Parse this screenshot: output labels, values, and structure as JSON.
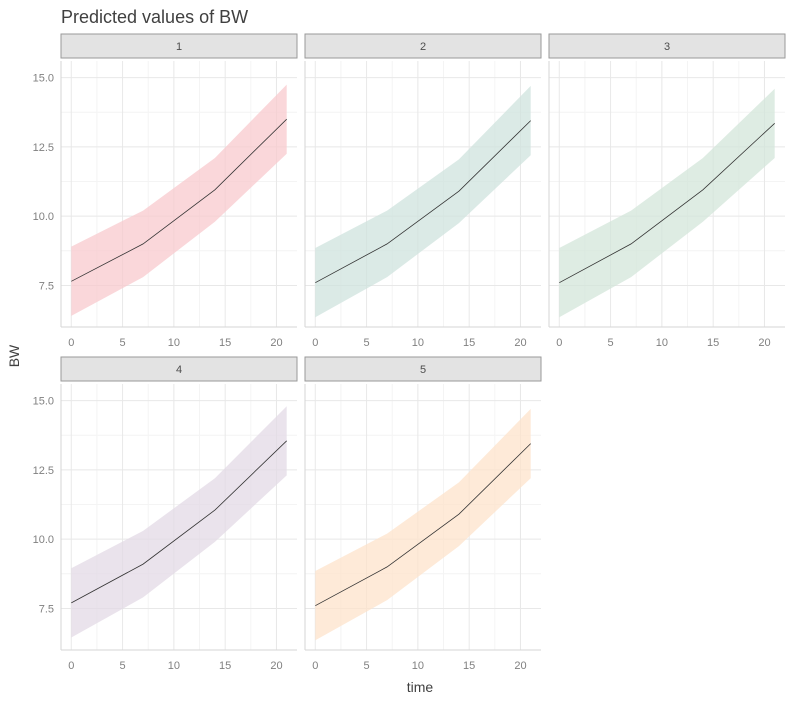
{
  "chart_data": {
    "type": "line",
    "title": "Predicted values of BW",
    "xlabel": "time",
    "ylabel": "BW",
    "xlim": [
      -1,
      22
    ],
    "ylim": [
      6.0,
      15.6
    ],
    "x_ticks": [
      0,
      5,
      10,
      15,
      20
    ],
    "x_tick_labels": [
      "0",
      "5",
      "10",
      "15",
      "20"
    ],
    "y_ticks": [
      7.5,
      10.0,
      12.5,
      15.0
    ],
    "y_tick_labels": [
      "7.5",
      "10.0",
      "12.5",
      "15.0"
    ],
    "grid": true,
    "facet_layout": "3 columns, 2 rows",
    "panels": [
      {
        "label": "1",
        "color": "#F8C9CD",
        "x": [
          0,
          7,
          14,
          21
        ],
        "y": [
          7.65,
          9.0,
          10.95,
          13.5
        ],
        "lower": [
          6.4,
          7.8,
          9.8,
          12.25
        ],
        "upper": [
          8.9,
          10.2,
          12.1,
          14.75
        ]
      },
      {
        "label": "2",
        "color": "#CFE3DD",
        "x": [
          0,
          7,
          14,
          21
        ],
        "y": [
          7.6,
          9.0,
          10.9,
          13.45
        ],
        "lower": [
          6.35,
          7.8,
          9.75,
          12.2
        ],
        "upper": [
          8.85,
          10.2,
          12.05,
          14.7
        ]
      },
      {
        "label": "3",
        "color": "#D3E5DA",
        "x": [
          0,
          7,
          14,
          21
        ],
        "y": [
          7.6,
          9.0,
          10.95,
          13.35
        ],
        "lower": [
          6.35,
          7.8,
          9.8,
          12.1
        ],
        "upper": [
          8.85,
          10.2,
          12.1,
          14.6
        ]
      },
      {
        "label": "4",
        "color": "#E3D9E5",
        "x": [
          0,
          7,
          14,
          21
        ],
        "y": [
          7.7,
          9.1,
          11.05,
          13.55
        ],
        "lower": [
          6.45,
          7.9,
          9.9,
          12.3
        ],
        "upper": [
          8.95,
          10.3,
          12.2,
          14.8
        ]
      },
      {
        "label": "5",
        "color": "#FDE3CB",
        "x": [
          0,
          7,
          14,
          21
        ],
        "y": [
          7.6,
          9.0,
          10.9,
          13.45
        ],
        "lower": [
          6.35,
          7.8,
          9.75,
          12.2
        ],
        "upper": [
          8.85,
          10.2,
          12.05,
          14.7
        ]
      }
    ]
  }
}
